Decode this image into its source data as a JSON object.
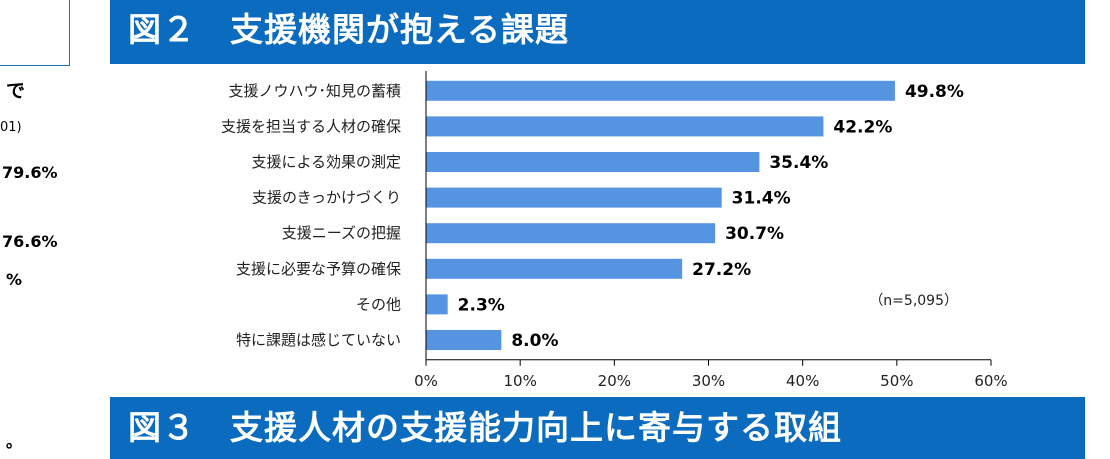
{
  "left_panel": {
    "heading_fragment": "で",
    "note_fragment": "01)",
    "value_1": "79.6%",
    "value_2": "76.6%",
    "value_3": "%",
    "value_4": "。"
  },
  "banners": {
    "top_title": "図２　支援機関が抱える課題",
    "bottom_title": "図３　支援人材の支援能力向上に寄与する取組"
  },
  "colors": {
    "banner": "#0b6cbf",
    "bar": "#5494e0"
  },
  "chart_data": {
    "type": "bar",
    "orientation": "horizontal",
    "categories": [
      "支援ノウハウ･知見の蓄積",
      "支援を担当する人材の確保",
      "支援による効果の測定",
      "支援のきっかけづくり",
      "支援ニーズの把握",
      "支援に必要な予算の確保",
      "その他",
      "特に課題は感じていない"
    ],
    "values": [
      49.8,
      42.2,
      35.4,
      31.4,
      30.7,
      27.2,
      2.3,
      8.0
    ],
    "value_labels": [
      "49.8%",
      "42.2%",
      "35.4%",
      "31.4%",
      "30.7%",
      "27.2%",
      "2.3%",
      "8.0%"
    ],
    "xlim": [
      0,
      60
    ],
    "xticks": [
      "0%",
      "10%",
      "20%",
      "30%",
      "40%",
      "50%",
      "60%"
    ],
    "note": "（n=5,095）",
    "grid": false,
    "xlabel": "",
    "ylabel": ""
  }
}
